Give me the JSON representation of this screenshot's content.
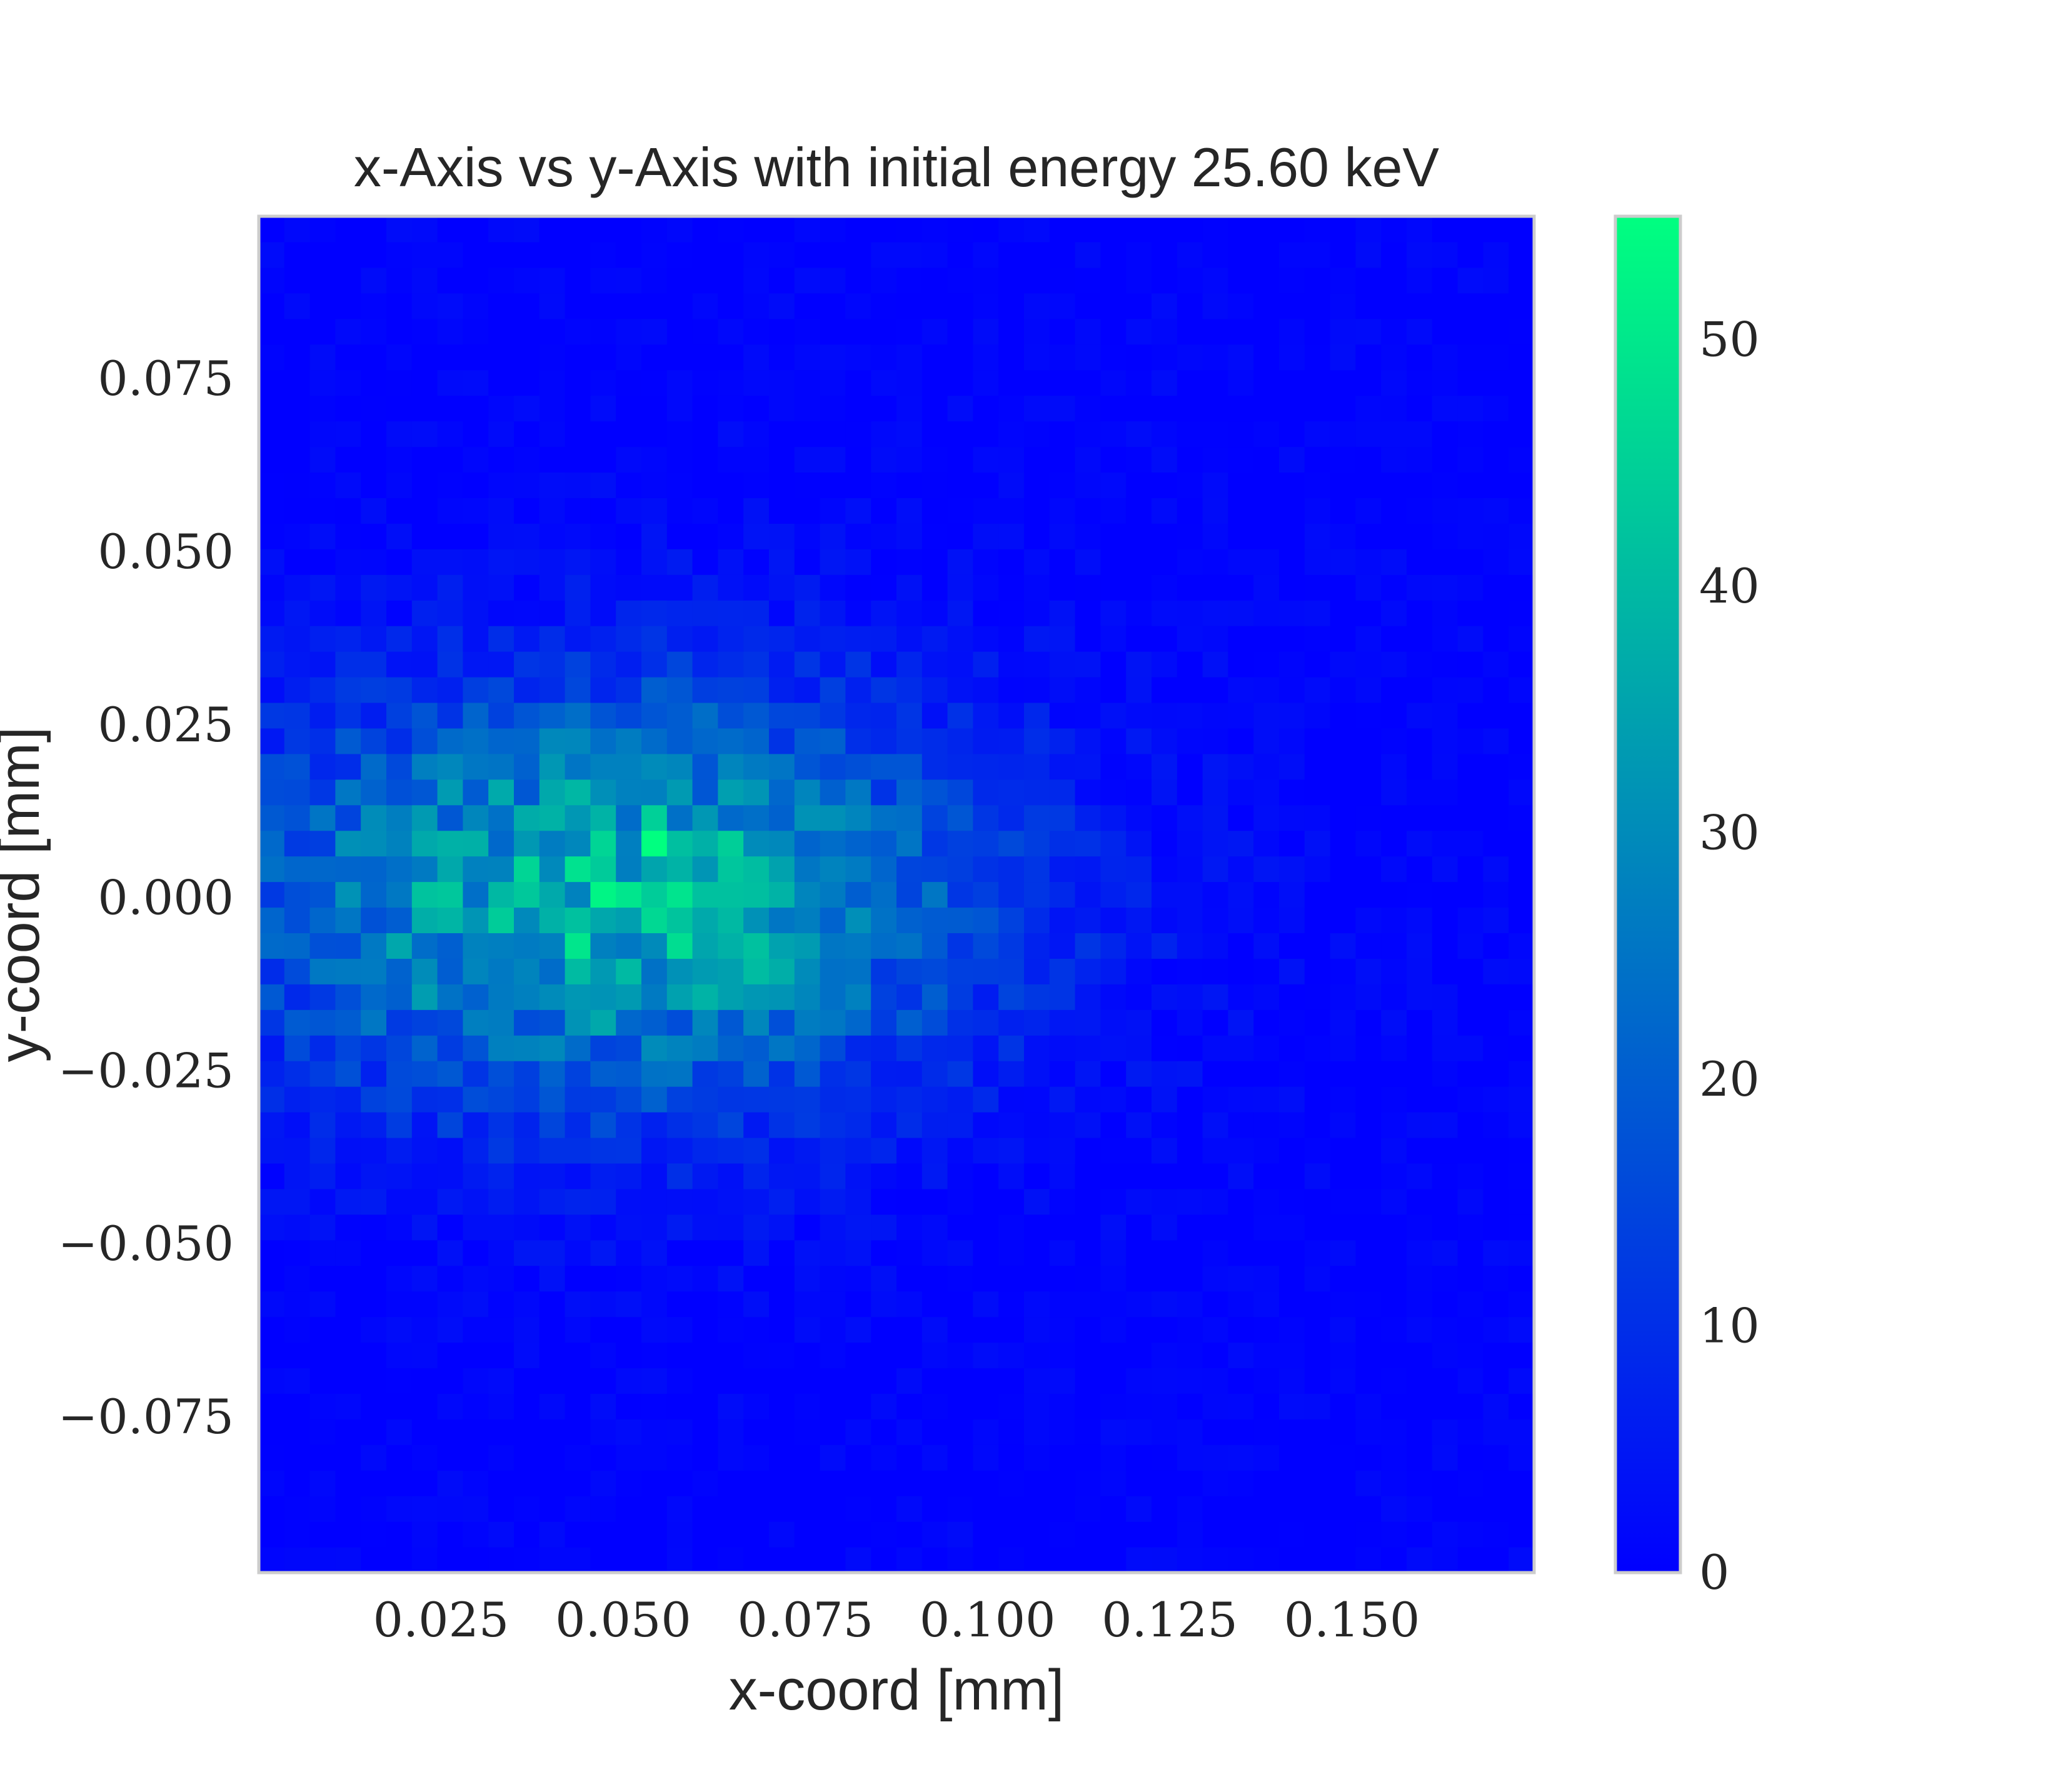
{
  "chart_data": {
    "type": "heatmap",
    "title": "x-Axis vs y-Axis with initial energy 25.60 keV",
    "xlabel": "x-coord [mm]",
    "ylabel": "y-coord [mm]",
    "xlim": [
      0.0,
      0.175
    ],
    "ylim": [
      -0.0975,
      0.0985
    ],
    "bins": {
      "nx": 50,
      "ny": 53
    },
    "x_ticks": [
      0.025,
      0.05,
      0.075,
      0.1,
      0.125,
      0.15
    ],
    "x_tick_labels": [
      "0.025",
      "0.050",
      "0.075",
      "0.100",
      "0.125",
      "0.150"
    ],
    "y_ticks": [
      0.075,
      0.05,
      0.025,
      0.0,
      -0.025,
      -0.05,
      -0.075
    ],
    "y_tick_labels": [
      "0.075",
      "0.050",
      "0.025",
      "0.000",
      "−0.025",
      "−0.050",
      "−0.075"
    ],
    "colorbar": {
      "min": 0,
      "max": 55,
      "ticks": [
        0,
        10,
        20,
        30,
        40,
        50
      ],
      "tick_labels": [
        "0",
        "10",
        "20",
        "30",
        "40",
        "50"
      ],
      "colormap": "winter",
      "low_color": "#0000ff",
      "high_color": "#00ff80"
    },
    "distribution": {
      "center_x": 0.048,
      "center_y": 0.0,
      "sigma_x": 0.036,
      "sigma_y": 0.021,
      "peak_count": 55,
      "hotspots": [
        {
          "x": 0.054,
          "y": 0.007,
          "count": 55
        },
        {
          "x": 0.046,
          "y": 0.007,
          "count": 46
        },
        {
          "x": 0.036,
          "y": 0.004,
          "count": 46
        },
        {
          "x": 0.022,
          "y": 0.0,
          "count": 42
        },
        {
          "x": 0.033,
          "y": -0.004,
          "count": 44
        }
      ]
    },
    "grid": false,
    "legend": "none"
  }
}
